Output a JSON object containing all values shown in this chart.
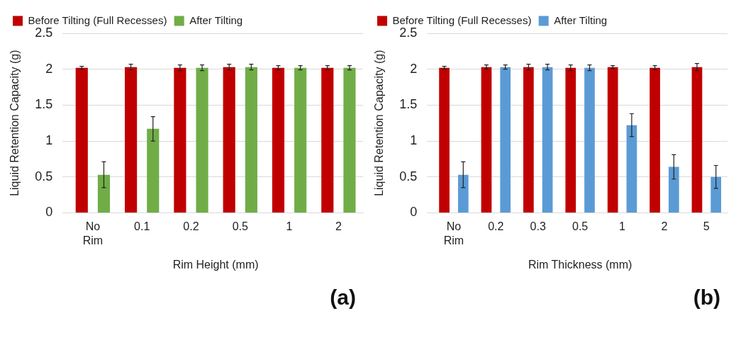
{
  "chart_data": [
    {
      "type": "bar",
      "xlabel": "Rim Height (mm)",
      "ylabel": "Liquid Retention Capacity (g)",
      "categories": [
        "No Rim",
        "0.1",
        "0.2",
        "0.5",
        "1",
        "2"
      ],
      "series": [
        {
          "name": "Before Tilting (Full Recesses)",
          "color": "#c00000",
          "values": [
            2.02,
            2.03,
            2.02,
            2.03,
            2.02,
            2.02
          ],
          "errors": [
            0.02,
            0.04,
            0.04,
            0.04,
            0.03,
            0.03
          ]
        },
        {
          "name": "After Tilting",
          "color": "#70ad47",
          "values": [
            0.53,
            1.17,
            2.02,
            2.03,
            2.02,
            2.02
          ],
          "errors": [
            0.18,
            0.17,
            0.04,
            0.04,
            0.03,
            0.03
          ]
        }
      ],
      "ylim": [
        0,
        2.5
      ],
      "yticks": [
        0,
        0.5,
        1,
        1.5,
        2,
        2.5
      ],
      "grid": "y",
      "legend": "top left",
      "annotations": [
        "(a)"
      ]
    },
    {
      "type": "bar",
      "xlabel": "Rim Thickness (mm)",
      "ylabel": "Liquid Retention Capacity (g)",
      "categories": [
        "No Rim",
        "0.2",
        "0.3",
        "0.5",
        "1",
        "2",
        "5"
      ],
      "series": [
        {
          "name": "Before Tilting (Full Recesses)",
          "color": "#c00000",
          "values": [
            2.02,
            2.03,
            2.03,
            2.02,
            2.03,
            2.02,
            2.03
          ],
          "errors": [
            0.02,
            0.03,
            0.04,
            0.04,
            0.02,
            0.03,
            0.05
          ]
        },
        {
          "name": "After Tilting",
          "color": "#5b9bd5",
          "values": [
            0.53,
            2.03,
            2.03,
            2.02,
            1.22,
            0.64,
            0.5
          ],
          "errors": [
            0.18,
            0.03,
            0.04,
            0.04,
            0.16,
            0.17,
            0.16
          ]
        }
      ],
      "ylim": [
        0,
        2.5
      ],
      "yticks": [
        0,
        0.5,
        1,
        1.5,
        2,
        2.5
      ],
      "grid": "y",
      "legend": "top left",
      "annotations": [
        "(b)"
      ]
    }
  ]
}
